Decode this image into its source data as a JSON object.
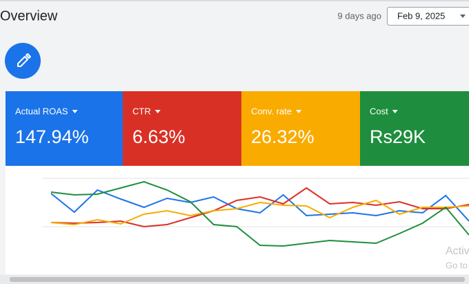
{
  "header": {
    "title": "Overview",
    "relative_date": "9 days ago",
    "date": "Feb 9, 2025"
  },
  "cards": [
    {
      "label": "Actual ROAS",
      "value": "147.94%",
      "color": "#1a73e8"
    },
    {
      "label": "CTR",
      "value": "6.63%",
      "color": "#d93025"
    },
    {
      "label": "Conv. rate",
      "value": "26.32%",
      "color": "#f9ab00"
    },
    {
      "label": "Cost",
      "value": "Rs29K",
      "color": "#1e8e3e"
    }
  ],
  "chart_data": {
    "type": "line",
    "ylim": [
      0,
      160
    ],
    "series": [
      {
        "name": "Actual ROAS",
        "color": "#1a73e8",
        "values": [
          120,
          93,
          125,
          112,
          100,
          113,
          107,
          115,
          98,
          92,
          118,
          88,
          90,
          92,
          88,
          95,
          92,
          117,
          80
        ]
      },
      {
        "name": "CTR",
        "color": "#d93025",
        "values": [
          78,
          77,
          78,
          80,
          72,
          75,
          85,
          95,
          110,
          115,
          105,
          128,
          105,
          107,
          103,
          108,
          98,
          98,
          104
        ]
      },
      {
        "name": "Conv. rate",
        "color": "#f9ab00",
        "values": [
          78,
          75,
          82,
          76,
          90,
          95,
          88,
          95,
          98,
          107,
          103,
          102,
          85,
          100,
          110,
          90,
          100,
          100,
          102
        ]
      },
      {
        "name": "Cost",
        "color": "#1e8e3e",
        "values": [
          122,
          118,
          119,
          128,
          137,
          125,
          108,
          75,
          72,
          45,
          44,
          48,
          52,
          50,
          48,
          62,
          77,
          100,
          60
        ]
      }
    ]
  },
  "watermark": {
    "line1": "Activ",
    "line2": "Go to"
  }
}
